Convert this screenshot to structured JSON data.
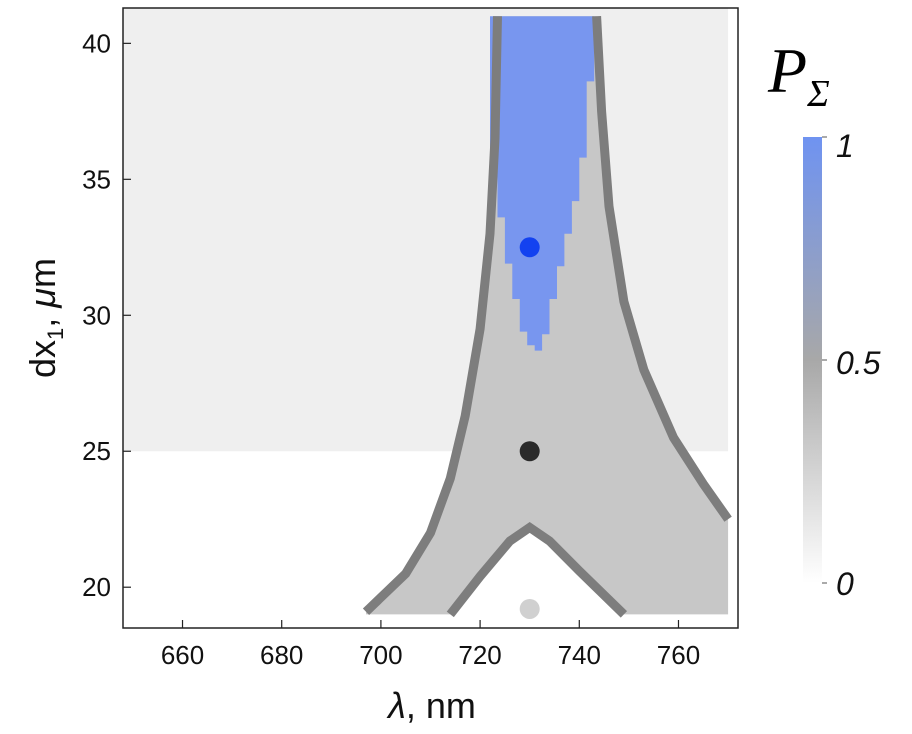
{
  "chart_data": {
    "type": "heatmap",
    "xlabel_symbol": "λ",
    "xlabel_unit": ", nm",
    "ylabel_base": "dx",
    "ylabel_sub": "1",
    "ylabel_sep": ", ",
    "ylabel_mu": "μ",
    "ylabel_unit": "m",
    "xlim": [
      648,
      772
    ],
    "ylim": [
      18.5,
      41.3
    ],
    "x_ticks": [
      660,
      680,
      700,
      720,
      740,
      760
    ],
    "x_tick_labels": [
      "660",
      "680",
      "700",
      "720",
      "740",
      "760"
    ],
    "y_ticks": [
      20,
      25,
      30,
      35,
      40
    ],
    "y_tick_labels": [
      "20",
      "25",
      "30",
      "35",
      "40"
    ],
    "colorbar": {
      "title_main": "P",
      "title_sub": "Σ",
      "range": [
        0,
        1
      ],
      "tick_labels": [
        "1",
        "0.5",
        "0"
      ],
      "tick_values": [
        1,
        0.5,
        0
      ],
      "colors": {
        "low": "#ffffff",
        "mid": "#a8a8a8",
        "high": "#6f93f1"
      }
    },
    "region_shading": [
      {
        "y_from": 25,
        "y_to": 41.3,
        "x_from": 648,
        "x_to": 770,
        "color": "#efefef"
      }
    ],
    "colors": {
      "grey_fill": "#c7c7c7",
      "high_fill": "#7896ef",
      "boundary": "#7d7d7d"
    },
    "outer_boundary_left": [
      [
        697,
        19.1
      ],
      [
        705,
        20.5
      ],
      [
        710,
        22.0
      ],
      [
        714,
        24.0
      ],
      [
        717,
        26.3
      ],
      [
        720,
        29.5
      ],
      [
        722,
        33.0
      ],
      [
        723,
        36.5
      ],
      [
        723.5,
        41.0
      ]
    ],
    "outer_boundary_right": [
      [
        743.5,
        41.0
      ],
      [
        744.5,
        37.5
      ],
      [
        746,
        34.0
      ],
      [
        749,
        30.5
      ],
      [
        753,
        28.0
      ],
      [
        759,
        25.5
      ],
      [
        765,
        23.8
      ],
      [
        770,
        22.5
      ]
    ],
    "inner_boundary": [
      [
        714,
        19.0
      ],
      [
        720,
        20.4
      ],
      [
        726,
        21.7
      ],
      [
        730,
        22.2
      ],
      [
        734,
        21.7
      ],
      [
        740,
        20.6
      ],
      [
        749,
        19.0
      ]
    ],
    "high_region_x": [
      722,
      723.5,
      725,
      726.5,
      728,
      729.5,
      731,
      732.5,
      734,
      735.5,
      737,
      738.5,
      740,
      741.5
    ],
    "high_region_ybottom": [
      35.7,
      33.6,
      31.9,
      30.6,
      29.4,
      28.9,
      28.7,
      29.3,
      30.6,
      31.8,
      33.0,
      34.2,
      35.8,
      38.6
    ],
    "high_region_ytop": 41.0,
    "points": [
      {
        "x": 730,
        "y": 32.5,
        "color": "#1342f0"
      },
      {
        "x": 730,
        "y": 25.0,
        "color": "#2a2a2a"
      },
      {
        "x": 730,
        "y": 19.2,
        "color": "#d0d0d0"
      }
    ]
  }
}
